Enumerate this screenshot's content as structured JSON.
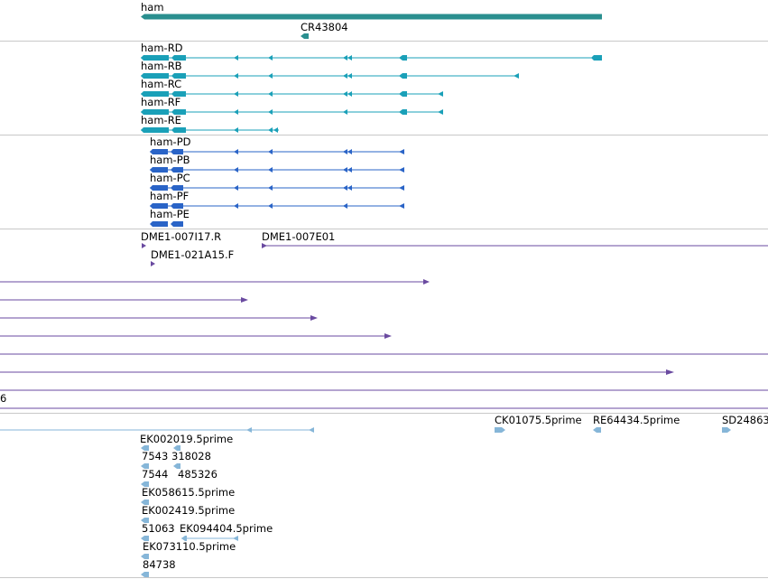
{
  "colors": {
    "gene": "#2a8f8f",
    "transcript": "#1aa0b8",
    "protein": "#2a64c7",
    "clone": "#6a4aa0",
    "est": "#86b6d8",
    "divider": "#c8c8c8",
    "text": "#000000"
  },
  "gene": {
    "label": "ham"
  },
  "ncrna": {
    "label": "CR43804"
  },
  "transcripts": [
    {
      "label": "ham-RD"
    },
    {
      "label": "ham-RB"
    },
    {
      "label": "ham-RC"
    },
    {
      "label": "ham-RF"
    },
    {
      "label": "ham-RE"
    }
  ],
  "proteins": [
    {
      "label": "ham-PD"
    },
    {
      "label": "ham-PB"
    },
    {
      "label": "ham-PC"
    },
    {
      "label": "ham-PF"
    },
    {
      "label": "ham-PE"
    }
  ],
  "clones": {
    "label_1": "DME1-007I17.R",
    "label_2": "DME1-007E01",
    "label_3": "DME1-021A15.F",
    "label_cut": "6"
  },
  "ests": {
    "top_labels": [
      "CK01075.5prime",
      "RE64434.5prime",
      "SD24863"
    ],
    "rows": [
      {
        "label": "EK002019.5prime"
      },
      {
        "label": "7543",
        "label2": "318028"
      },
      {
        "label": "7544",
        "label2": "485326"
      },
      {
        "label": "EK058615.5prime"
      },
      {
        "label": "EK002419.5prime"
      },
      {
        "label": "51063",
        "label2": "EK094404.5prime"
      },
      {
        "label": "EK073110.5prime"
      },
      {
        "label": "84738"
      }
    ]
  }
}
